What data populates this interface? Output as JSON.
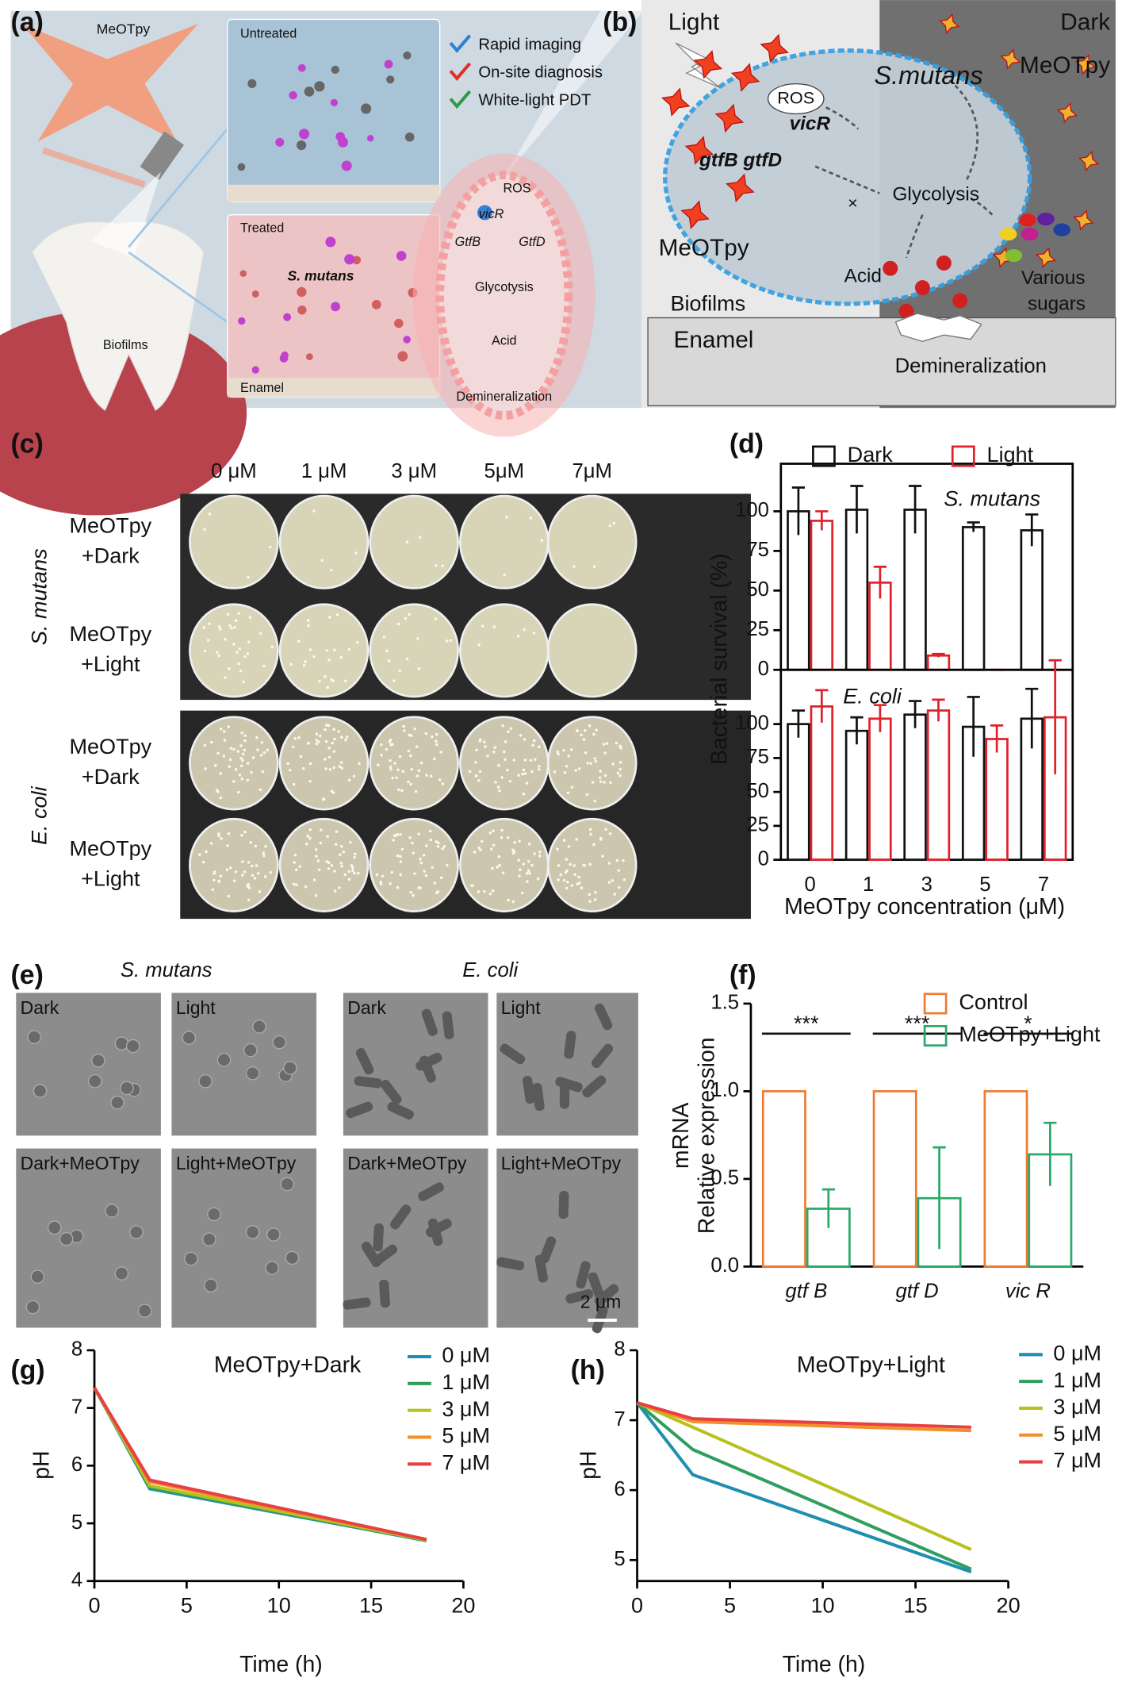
{
  "panel_labels": [
    "(a)",
    "(b)",
    "(c)",
    "(d)",
    "(e)",
    "(f)",
    "(g)",
    "(h)"
  ],
  "panel_a": {
    "molecule": "MeOTpy",
    "untreated": "Untreated",
    "treated": "Treated",
    "enamel": "Enamel",
    "biofilms": "Biofilms",
    "species": "S. mutans",
    "features": [
      "Rapid imaging",
      "On-site diagnosis",
      "White-light PDT"
    ],
    "pathway": [
      "ROS",
      "vicR",
      "GtfB",
      "GtfD",
      "Glycotysis",
      "Acid",
      "Demineralization"
    ]
  },
  "panel_b": {
    "light": "Light",
    "dark": "Dark",
    "dye_dark": "MeOTpy",
    "dye_light": "MeOTpy",
    "species": "S.mutans",
    "ros": "ROS",
    "vicr": "vicR",
    "gtf": "gtfB gtfD",
    "glycolysis": "Glycolysis",
    "acid": "Acid",
    "sugars": [
      "Various",
      "sugars"
    ],
    "biofilms": "Biofilms",
    "enamel": "Enamel",
    "demineralization": "Demineralization"
  },
  "panel_c": {
    "columns": [
      "0 μM",
      "1 μM",
      "3 μM",
      "5μM",
      "7μM"
    ],
    "rows": [
      [
        "MeOTpy",
        "+Dark"
      ],
      [
        "MeOTpy",
        "+Light"
      ],
      [
        "MeOTpy",
        "+Dark"
      ],
      [
        "MeOTpy",
        "+Light"
      ]
    ],
    "groups": [
      "S. mutans",
      "E. coli"
    ]
  },
  "panel_e": {
    "groups": [
      "S. mutans",
      "E. coli"
    ],
    "conditions": [
      "Dark",
      "Light",
      "Dark+MeOTpy",
      "Light+MeOTpy"
    ],
    "scale_bar": "2 μm"
  },
  "chart_data": [
    {
      "type": "bar",
      "annotation": "S. mutans",
      "ylabel": "Bacterial survival (%)",
      "series": [
        {
          "name": "Dark",
          "color": "#111111",
          "values": [
            100,
            101,
            101,
            90,
            88
          ],
          "errors": [
            15,
            15,
            15,
            3,
            10
          ]
        },
        {
          "name": "Light",
          "color": "#e0202a",
          "values": [
            94,
            55,
            9,
            0,
            0
          ],
          "errors": [
            6,
            10,
            1,
            0,
            0
          ]
        }
      ],
      "ylim": [
        0,
        130
      ],
      "yticks": [
        0,
        25,
        50,
        75,
        100
      ]
    },
    {
      "type": "bar",
      "annotation": "E. coli",
      "xlabel": "MeOTpy concentration (μM)",
      "categories": [
        "0",
        "1",
        "3",
        "5",
        "7"
      ],
      "series": [
        {
          "color": "#111111",
          "values": [
            100,
            95,
            107,
            98,
            104
          ],
          "errors": [
            10,
            10,
            10,
            22,
            22
          ]
        },
        {
          "color": "#e0202a",
          "values": [
            113,
            104,
            110,
            89,
            105
          ],
          "errors": [
            12,
            10,
            8,
            10,
            42
          ]
        }
      ],
      "ylim": [
        0,
        140
      ],
      "yticks": [
        0,
        25,
        50,
        75,
        100
      ]
    },
    {
      "type": "bar",
      "ylabel": [
        "mRNA",
        "Relative expression"
      ],
      "categories": [
        "gtf B",
        "gtf D",
        "vic R"
      ],
      "significance": [
        "***",
        "***",
        "*"
      ],
      "series": [
        {
          "name": "Control",
          "color": "#f07a30",
          "values": [
            1,
            1,
            1
          ]
        },
        {
          "name": "MeOTpy+Light",
          "color": "#2aa86a",
          "values": [
            0.33,
            0.39,
            0.64
          ],
          "errors": [
            0.11,
            0.29,
            0.18
          ]
        }
      ],
      "ylim": [
        0,
        1.5
      ],
      "yticks": [
        {
          "value": 0,
          "label": "0.0"
        },
        0.5,
        {
          "value": 1,
          "label": "1.0"
        },
        1.5
      ]
    },
    {
      "type": "line",
      "title": "MeOTpy+Dark",
      "xlabel": "Time (h)",
      "ylabel": "pH",
      "x": [
        0,
        3,
        18
      ],
      "series": [
        {
          "name": "0 μM",
          "color": "#1f8fb0",
          "values": [
            7.35,
            5.6,
            4.7
          ]
        },
        {
          "name": "1 μM",
          "color": "#2e9e5e",
          "values": [
            7.35,
            5.62,
            4.7
          ]
        },
        {
          "name": "3 μM",
          "color": "#b8c020",
          "values": [
            7.35,
            5.65,
            4.71
          ]
        },
        {
          "name": "5 μM",
          "color": "#f0902a",
          "values": [
            7.35,
            5.72,
            4.72
          ]
        },
        {
          "name": "7 μM",
          "color": "#e84040",
          "values": [
            7.35,
            5.75,
            4.72
          ]
        }
      ],
      "xlim": [
        0,
        20
      ],
      "xticks": [
        0,
        5,
        10,
        15,
        20
      ],
      "ylim": [
        4,
        8
      ],
      "yticks": [
        4,
        5,
        6,
        7,
        8
      ]
    },
    {
      "type": "line",
      "title": "MeOTpy+Light",
      "xlabel": "Time (h)",
      "ylabel": "pH",
      "x": [
        0,
        3,
        18
      ],
      "series": [
        {
          "name": "0 μM",
          "color": "#1f8fb0",
          "values": [
            7.25,
            6.22,
            4.83
          ]
        },
        {
          "name": "1 μM",
          "color": "#2e9e5e",
          "values": [
            7.25,
            6.58,
            4.87
          ]
        },
        {
          "name": "3 μM",
          "color": "#b8c020",
          "values": [
            7.25,
            6.9,
            5.15
          ]
        },
        {
          "name": "5 μM",
          "color": "#f0902a",
          "values": [
            7.25,
            6.98,
            6.85
          ]
        },
        {
          "name": "7 μM",
          "color": "#e84040",
          "values": [
            7.25,
            7.02,
            6.9
          ]
        }
      ],
      "xlim": [
        0,
        20
      ],
      "xticks": [
        0,
        5,
        10,
        15,
        20
      ],
      "ylim": [
        4.7,
        8
      ],
      "yticks": [
        5,
        6,
        7,
        8
      ]
    }
  ]
}
